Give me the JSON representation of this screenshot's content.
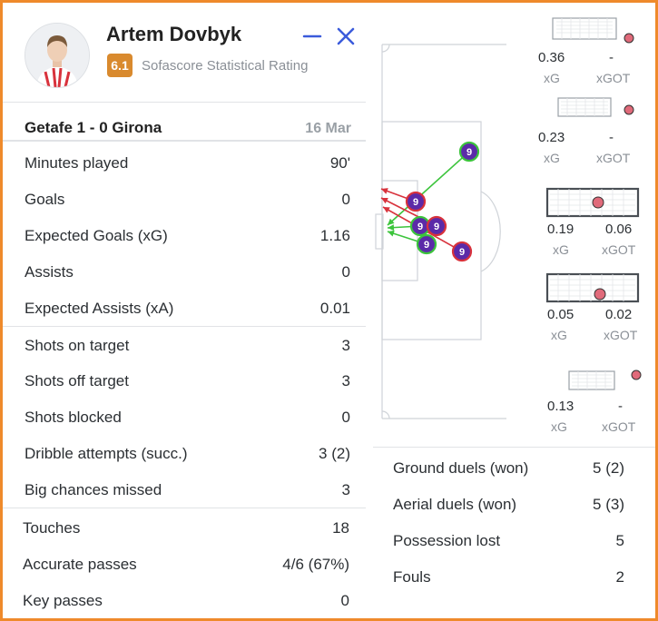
{
  "player": {
    "name": "Artem Dovbyk",
    "rating": "6.1",
    "rating_label": "Sofascore Statistical Rating"
  },
  "match": {
    "title": "Getafe 1 - 0 Girona",
    "date": "16 Mar"
  },
  "stats_left": [
    {
      "label": "Minutes played",
      "value": "90'"
    },
    {
      "label": "Goals",
      "value": "0"
    },
    {
      "label": "Expected Goals (xG)",
      "value": "1.16"
    },
    {
      "label": "Assists",
      "value": "0"
    },
    {
      "label": "Expected Assists (xA)",
      "value": "0.01"
    },
    {
      "label": "Shots on target",
      "value": "3"
    },
    {
      "label": "Shots off target",
      "value": "3"
    },
    {
      "label": "Shots blocked",
      "value": "0"
    },
    {
      "label": "Dribble attempts (succ.)",
      "value": "3 (2)"
    },
    {
      "label": "Big chances missed",
      "value": "3"
    },
    {
      "label": "Touches",
      "value": "18"
    },
    {
      "label": "Accurate passes",
      "value": "4/6 (67%)"
    },
    {
      "label": "Key passes",
      "value": "0"
    }
  ],
  "stats_right": [
    {
      "label": "Ground duels (won)",
      "value": "5 (2)"
    },
    {
      "label": "Aerial duels (won)",
      "value": "5 (3)"
    },
    {
      "label": "Possession lost",
      "value": "5"
    },
    {
      "label": "Fouls",
      "value": "2"
    }
  ],
  "shot_map": {
    "shirt_number": "9",
    "shots": [
      {
        "on_target": true
      },
      {
        "on_target": false
      },
      {
        "on_target": true
      },
      {
        "on_target": false
      },
      {
        "on_target": true
      },
      {
        "on_target": false
      }
    ]
  },
  "shot_cards": [
    {
      "xg": "0.36",
      "xgot": "-",
      "xg_label": "xG",
      "xgot_label": "xGOT"
    },
    {
      "xg": "0.23",
      "xgot": "-",
      "xg_label": "xG",
      "xgot_label": "xGOT"
    },
    {
      "xg": "0.19",
      "xgot": "0.06",
      "xg_label": "xG",
      "xgot_label": "xGOT"
    },
    {
      "xg": "0.05",
      "xgot": "0.02",
      "xg_label": "xG",
      "xgot_label": "xGOT"
    },
    {
      "xg": "0.13",
      "xgot": "-",
      "xg_label": "xG",
      "xgot_label": "xGOT"
    }
  ],
  "colors": {
    "frame": "#ef8a2b",
    "rating_badge": "#d98a2e",
    "header_icon": "#3b5bdb",
    "marker_fill": "#5b2aa8",
    "on_target": "#3cc43c",
    "off_target": "#d8323c",
    "ball": "#e06a7a"
  },
  "icons": {
    "minimize": "minus-icon",
    "close": "close-icon"
  }
}
